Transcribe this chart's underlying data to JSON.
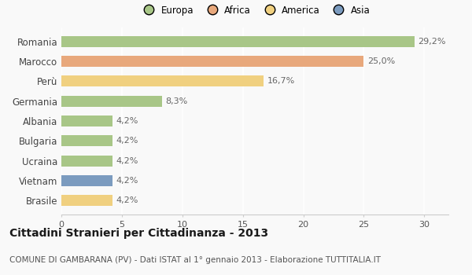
{
  "countries": [
    "Romania",
    "Marocco",
    "Perù",
    "Germania",
    "Albania",
    "Bulgaria",
    "Ucraina",
    "Vietnam",
    "Brasile"
  ],
  "values": [
    29.2,
    25.0,
    16.7,
    8.3,
    4.2,
    4.2,
    4.2,
    4.2,
    4.2
  ],
  "labels": [
    "29,2%",
    "25,0%",
    "16,7%",
    "8,3%",
    "4,2%",
    "4,2%",
    "4,2%",
    "4,2%",
    "4,2%"
  ],
  "colors": [
    "#a8c687",
    "#e8a87c",
    "#f0d080",
    "#a8c687",
    "#a8c687",
    "#a8c687",
    "#a8c687",
    "#7b9bbf",
    "#f0d080"
  ],
  "legend_labels": [
    "Europa",
    "Africa",
    "America",
    "Asia"
  ],
  "legend_colors": [
    "#a8c687",
    "#e8a87c",
    "#f0d080",
    "#7b9bbf"
  ],
  "xlim": [
    0,
    32
  ],
  "xticks": [
    0,
    5,
    10,
    15,
    20,
    25,
    30
  ],
  "title": "Cittadini Stranieri per Cittadinanza - 2013",
  "subtitle": "COMUNE DI GAMBARANA (PV) - Dati ISTAT al 1° gennaio 2013 - Elaborazione TUTTITALIA.IT",
  "background_color": "#f9f9f9",
  "bar_height": 0.55,
  "label_fontsize": 8,
  "title_fontsize": 10,
  "subtitle_fontsize": 7.5,
  "ytick_fontsize": 8.5,
  "xtick_fontsize": 8
}
